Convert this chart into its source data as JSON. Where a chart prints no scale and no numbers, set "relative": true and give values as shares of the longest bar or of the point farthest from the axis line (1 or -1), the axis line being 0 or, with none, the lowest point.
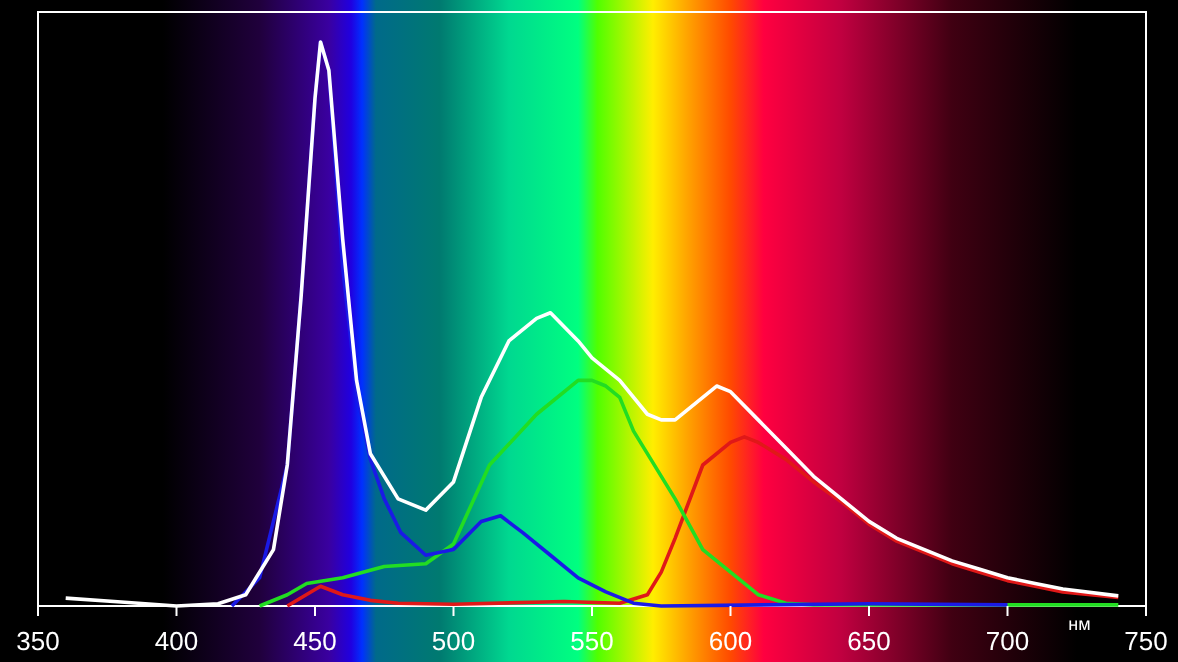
{
  "chart_data": {
    "type": "line",
    "relative": true,
    "xlabel": "нм",
    "xlim": [
      350,
      750
    ],
    "xticks": [
      350,
      400,
      450,
      500,
      550,
      600,
      650,
      700,
      750
    ],
    "series": [
      {
        "color": "#ffffff",
        "x": [
          360,
          380,
          400,
          415,
          425,
          435,
          440,
          445,
          450,
          452,
          455,
          460,
          465,
          470,
          480,
          490,
          500,
          510,
          520,
          530,
          535,
          545,
          550,
          560,
          570,
          575,
          580,
          590,
          595,
          600,
          610,
          620,
          630,
          640,
          650,
          660,
          670,
          680,
          690,
          700,
          710,
          720,
          740
        ],
        "values": [
          0.014,
          0.007,
          0,
          0.004,
          0.02,
          0.1,
          0.25,
          0.55,
          0.9,
          1,
          0.95,
          0.65,
          0.4,
          0.27,
          0.19,
          0.17,
          0.22,
          0.37,
          0.47,
          0.51,
          0.52,
          0.47,
          0.44,
          0.4,
          0.34,
          0.33,
          0.33,
          0.37,
          0.39,
          0.38,
          0.33,
          0.28,
          0.23,
          0.19,
          0.15,
          0.12,
          0.1,
          0.08,
          0.065,
          0.05,
          0.04,
          0.03,
          0.018
        ]
      },
      {
        "color": "#1a1ae6",
        "x": [
          420,
          430,
          440,
          445,
          450,
          452,
          455,
          460,
          465,
          470,
          475,
          481,
          490,
          500,
          510,
          517,
          525,
          535,
          545,
          555,
          565,
          575,
          650,
          700
        ],
        "values": [
          0,
          0.05,
          0.25,
          0.55,
          0.9,
          1,
          0.95,
          0.6,
          0.38,
          0.26,
          0.19,
          0.13,
          0.09,
          0.1,
          0.15,
          0.16,
          0.13,
          0.09,
          0.05,
          0.025,
          0.005,
          0,
          0.004,
          0.002
        ]
      },
      {
        "color": "#22dd22",
        "x": [
          430,
          440,
          447,
          460,
          475,
          490,
          500,
          513,
          530,
          545,
          550,
          555,
          560,
          565,
          580,
          590,
          600,
          610,
          620,
          630,
          700,
          740
        ],
        "values": [
          0,
          0.02,
          0.04,
          0.05,
          0.07,
          0.075,
          0.11,
          0.25,
          0.34,
          0.4,
          0.4,
          0.39,
          0.37,
          0.31,
          0.19,
          0.1,
          0.06,
          0.02,
          0.005,
          0.002,
          0.002,
          0.002
        ]
      },
      {
        "color": "#e01818",
        "x": [
          440,
          452,
          460,
          470,
          480,
          500,
          540,
          560,
          570,
          575,
          580,
          590,
          600,
          605,
          610,
          620,
          630,
          640,
          650,
          660,
          670,
          680,
          690,
          700,
          710,
          720,
          740
        ],
        "values": [
          0,
          0.035,
          0.02,
          0.01,
          0.005,
          0.003,
          0.008,
          0.005,
          0.02,
          0.06,
          0.12,
          0.25,
          0.29,
          0.3,
          0.29,
          0.26,
          0.22,
          0.185,
          0.145,
          0.115,
          0.095,
          0.075,
          0.06,
          0.045,
          0.035,
          0.025,
          0.015
        ]
      }
    ]
  }
}
